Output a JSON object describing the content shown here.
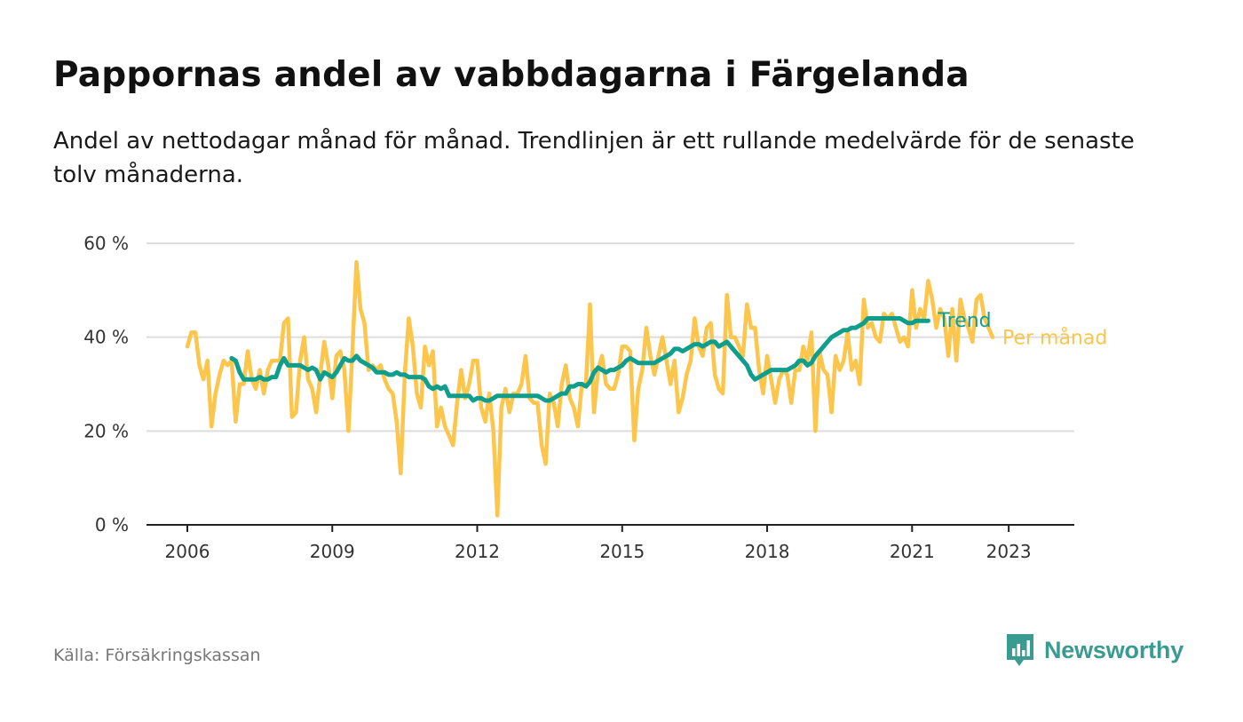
{
  "header": {
    "title": "Pappornas andel av vabbdagarna i Färgelanda",
    "subtitle": "Andel av nettodagar månad för månad. Trendlinjen är ett rullande medelvärde för de senaste tolv månaderna."
  },
  "footer": {
    "source": "Källa: Försäkringskassan",
    "brand": "Newsworthy"
  },
  "colors": {
    "monthly": "#fcc54b",
    "trend": "#0f9e8c",
    "grid": "#dddddd",
    "axis": "#222222",
    "brand": "#3a9b91"
  },
  "chart_data": {
    "type": "line",
    "x_unit": "date (monthly)",
    "y_unit": "percent",
    "ylim": [
      0,
      60
    ],
    "xlim": [
      "2006-01",
      "2023-12"
    ],
    "y_ticks": [
      0,
      20,
      40,
      60
    ],
    "y_tick_labels": [
      "0 %",
      "20 %",
      "40 %",
      "60 %"
    ],
    "x_ticks": [
      2006,
      2009,
      2012,
      2015,
      2018,
      2021,
      2023
    ],
    "x_tick_labels": [
      "2006",
      "2009",
      "2012",
      "2015",
      "2018",
      "2021",
      "2023"
    ],
    "grid": true,
    "legend": "end-of-line labels",
    "series": [
      {
        "name": "Per månad",
        "start": "2006-01",
        "values": [
          38,
          41,
          41,
          34,
          31,
          35,
          21,
          28,
          32,
          35,
          34,
          35,
          22,
          30,
          30,
          37,
          31,
          29,
          33,
          28,
          33,
          35,
          35,
          35,
          43,
          44,
          23,
          24,
          35,
          40,
          31,
          29,
          24,
          32,
          39,
          34,
          27,
          36,
          37,
          33,
          20,
          37,
          56,
          46,
          43,
          33,
          34,
          33,
          34,
          31,
          29,
          28,
          22,
          11,
          32,
          44,
          38,
          28,
          25,
          38,
          34,
          37,
          21,
          25,
          21,
          19,
          17,
          26,
          33,
          27,
          30,
          35,
          35,
          25,
          22,
          28,
          20,
          2,
          25,
          29,
          24,
          28,
          28,
          30,
          36,
          27,
          26,
          26,
          17,
          13,
          28,
          26,
          21,
          30,
          34,
          27,
          25,
          21,
          30,
          30,
          47,
          24,
          33,
          36,
          30,
          29,
          29,
          32,
          38,
          38,
          37,
          18,
          29,
          33,
          42,
          36,
          32,
          36,
          40,
          35,
          30,
          35,
          24,
          27,
          32,
          35,
          44,
          38,
          36,
          42,
          43,
          32,
          29,
          28,
          49,
          40,
          40,
          38,
          36,
          47,
          42,
          42,
          33,
          28,
          36,
          31,
          26,
          31,
          33,
          32,
          26,
          33,
          33,
          38,
          35,
          41,
          20,
          37,
          33,
          32,
          24,
          36,
          33,
          35,
          41,
          33,
          35,
          30,
          48,
          42,
          43,
          40,
          39,
          45,
          44,
          45,
          42,
          39,
          40,
          38,
          50,
          42,
          46,
          44,
          52,
          48,
          42,
          46,
          44,
          36,
          46,
          35,
          48,
          44,
          42,
          39,
          48,
          49,
          44,
          42,
          40
        ]
      },
      {
        "name": "Trend",
        "start": "2006-12",
        "values": [
          35.5,
          35,
          32.5,
          31,
          31,
          31,
          31,
          31.5,
          31,
          31,
          31.5,
          31.5,
          34,
          35.5,
          34,
          34,
          34,
          34,
          33.5,
          33,
          33.5,
          33,
          31,
          32.5,
          32,
          31.5,
          32.5,
          34,
          35.5,
          35,
          35,
          36,
          35,
          34.5,
          34,
          33.5,
          32.5,
          32.5,
          32.5,
          32,
          32,
          32.5,
          32,
          32,
          31.5,
          31.5,
          31.5,
          31.5,
          31,
          29.5,
          29,
          29.5,
          29,
          29.5,
          27.5,
          27.5,
          27.5,
          27.5,
          27.5,
          27.5,
          26.5,
          27,
          27,
          26.5,
          26.5,
          27,
          27.5,
          27.5,
          27.5,
          27.5,
          27.5,
          27.5,
          27.5,
          27.5,
          27.5,
          27.5,
          27.5,
          27,
          26.5,
          26.5,
          27,
          27.5,
          28,
          28,
          29.5,
          29.5,
          30,
          30,
          29.5,
          30.5,
          32.5,
          33.5,
          33,
          32.5,
          33,
          33,
          33.5,
          34,
          35,
          35.5,
          35,
          34.5,
          34.5,
          34.5,
          34.5,
          34.5,
          35,
          35.5,
          36,
          36.5,
          37.5,
          37.5,
          37,
          37.5,
          38,
          38.5,
          38.5,
          38,
          38.5,
          39,
          39,
          38,
          38.5,
          39,
          38,
          37,
          36,
          35,
          34,
          32,
          31,
          31.5,
          32,
          32.5,
          33,
          33,
          33,
          33,
          33,
          33.5,
          34,
          35,
          35,
          34,
          34.5,
          36,
          37,
          38,
          39,
          40,
          40.5,
          41,
          41.5,
          41.5,
          42,
          42,
          42.5,
          43,
          44,
          44,
          44,
          44,
          44,
          44,
          44,
          44,
          44,
          43.5,
          43,
          43,
          43.5,
          43.5,
          43.5,
          43.5
        ]
      }
    ]
  }
}
